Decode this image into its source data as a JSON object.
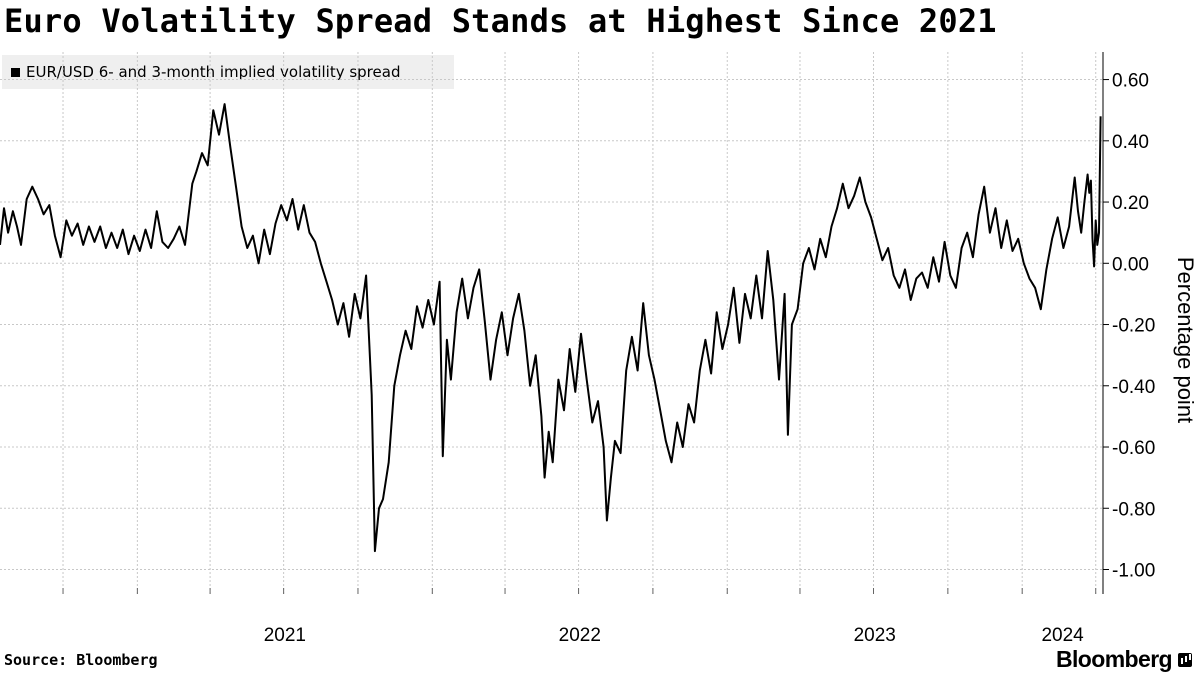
{
  "title": "Euro Volatility Spread Stands at Highest Since 2021",
  "source": "Source: Bloomberg",
  "brand": "Bloomberg",
  "chart_data": {
    "type": "line",
    "ylabel": "Percentage point",
    "ylim": [
      -1.08,
      0.69
    ],
    "y_ticks": [
      -1.0,
      -0.8,
      -0.6,
      -0.4,
      -0.2,
      0.0,
      0.2,
      0.4,
      0.6
    ],
    "y_tick_labels": [
      "-1.00",
      "-0.80",
      "-0.60",
      "-0.40",
      "-0.20",
      "0.00",
      "0.20",
      "0.40",
      "0.60"
    ],
    "x_labels": [
      {
        "label": "2021",
        "date": "2021-01-01"
      },
      {
        "label": "2022",
        "date": "2022-01-01"
      },
      {
        "label": "2023",
        "date": "2023-01-01"
      },
      {
        "label": "2024",
        "date": "2024-01-01"
      }
    ],
    "xlim": [
      "2020-07-15",
      "2024-04-10"
    ],
    "grid": true,
    "legend_position": "top-left",
    "axis_position": "right",
    "line_color": "#000000",
    "series": [
      {
        "name": "EUR/USD 6- and 3-month implied volatility spread",
        "points": [
          [
            "2020-07-15",
            0.06
          ],
          [
            "2020-07-20",
            0.18
          ],
          [
            "2020-07-25",
            0.1
          ],
          [
            "2020-07-31",
            0.17
          ],
          [
            "2020-08-05",
            0.12
          ],
          [
            "2020-08-10",
            0.06
          ],
          [
            "2020-08-17",
            0.21
          ],
          [
            "2020-08-24",
            0.25
          ],
          [
            "2020-08-31",
            0.21
          ],
          [
            "2020-09-07",
            0.16
          ],
          [
            "2020-09-14",
            0.19
          ],
          [
            "2020-09-21",
            0.09
          ],
          [
            "2020-09-28",
            0.02
          ],
          [
            "2020-10-05",
            0.14
          ],
          [
            "2020-10-12",
            0.09
          ],
          [
            "2020-10-19",
            0.13
          ],
          [
            "2020-10-26",
            0.06
          ],
          [
            "2020-11-02",
            0.12
          ],
          [
            "2020-11-09",
            0.07
          ],
          [
            "2020-11-16",
            0.12
          ],
          [
            "2020-11-23",
            0.05
          ],
          [
            "2020-11-30",
            0.1
          ],
          [
            "2020-12-07",
            0.05
          ],
          [
            "2020-12-14",
            0.11
          ],
          [
            "2020-12-21",
            0.03
          ],
          [
            "2020-12-28",
            0.09
          ],
          [
            "2021-01-04",
            0.04
          ],
          [
            "2021-01-11",
            0.11
          ],
          [
            "2021-01-18",
            0.05
          ],
          [
            "2021-01-25",
            0.17
          ],
          [
            "2021-02-01",
            0.07
          ],
          [
            "2021-02-08",
            0.05
          ],
          [
            "2021-02-15",
            0.08
          ],
          [
            "2021-02-22",
            0.12
          ],
          [
            "2021-03-01",
            0.06
          ],
          [
            "2021-03-05",
            0.15
          ],
          [
            "2021-03-10",
            0.26
          ],
          [
            "2021-03-15",
            0.3
          ],
          [
            "2021-03-22",
            0.36
          ],
          [
            "2021-03-29",
            0.32
          ],
          [
            "2021-04-05",
            0.5
          ],
          [
            "2021-04-12",
            0.42
          ],
          [
            "2021-04-19",
            0.52
          ],
          [
            "2021-04-26",
            0.38
          ],
          [
            "2021-05-03",
            0.25
          ],
          [
            "2021-05-10",
            0.12
          ],
          [
            "2021-05-17",
            0.05
          ],
          [
            "2021-05-24",
            0.09
          ],
          [
            "2021-05-31",
            0.0
          ],
          [
            "2021-06-07",
            0.11
          ],
          [
            "2021-06-14",
            0.03
          ],
          [
            "2021-06-21",
            0.13
          ],
          [
            "2021-06-28",
            0.19
          ],
          [
            "2021-07-05",
            0.14
          ],
          [
            "2021-07-12",
            0.21
          ],
          [
            "2021-07-19",
            0.11
          ],
          [
            "2021-07-26",
            0.19
          ],
          [
            "2021-08-02",
            0.1
          ],
          [
            "2021-08-09",
            0.07
          ],
          [
            "2021-08-16",
            0.0
          ],
          [
            "2021-08-23",
            -0.06
          ],
          [
            "2021-08-30",
            -0.12
          ],
          [
            "2021-09-06",
            -0.2
          ],
          [
            "2021-09-13",
            -0.13
          ],
          [
            "2021-09-20",
            -0.24
          ],
          [
            "2021-09-27",
            -0.1
          ],
          [
            "2021-10-04",
            -0.18
          ],
          [
            "2021-10-11",
            -0.04
          ],
          [
            "2021-10-18",
            -0.43
          ],
          [
            "2021-10-22",
            -0.94
          ],
          [
            "2021-10-27",
            -0.8
          ],
          [
            "2021-11-01",
            -0.77
          ],
          [
            "2021-11-08",
            -0.65
          ],
          [
            "2021-11-15",
            -0.4
          ],
          [
            "2021-11-22",
            -0.3
          ],
          [
            "2021-11-29",
            -0.22
          ],
          [
            "2021-12-06",
            -0.28
          ],
          [
            "2021-12-13",
            -0.14
          ],
          [
            "2021-12-20",
            -0.21
          ],
          [
            "2021-12-27",
            -0.12
          ],
          [
            "2022-01-03",
            -0.2
          ],
          [
            "2022-01-10",
            -0.06
          ],
          [
            "2022-01-14",
            -0.63
          ],
          [
            "2022-01-19",
            -0.25
          ],
          [
            "2022-01-24",
            -0.38
          ],
          [
            "2022-01-31",
            -0.16
          ],
          [
            "2022-02-07",
            -0.05
          ],
          [
            "2022-02-14",
            -0.18
          ],
          [
            "2022-02-21",
            -0.08
          ],
          [
            "2022-02-28",
            -0.02
          ],
          [
            "2022-03-07",
            -0.19
          ],
          [
            "2022-03-14",
            -0.38
          ],
          [
            "2022-03-21",
            -0.25
          ],
          [
            "2022-03-28",
            -0.16
          ],
          [
            "2022-04-04",
            -0.3
          ],
          [
            "2022-04-11",
            -0.18
          ],
          [
            "2022-04-18",
            -0.1
          ],
          [
            "2022-04-25",
            -0.22
          ],
          [
            "2022-05-02",
            -0.4
          ],
          [
            "2022-05-09",
            -0.3
          ],
          [
            "2022-05-16",
            -0.5
          ],
          [
            "2022-05-20",
            -0.7
          ],
          [
            "2022-05-25",
            -0.55
          ],
          [
            "2022-05-30",
            -0.65
          ],
          [
            "2022-06-06",
            -0.38
          ],
          [
            "2022-06-13",
            -0.48
          ],
          [
            "2022-06-20",
            -0.28
          ],
          [
            "2022-06-27",
            -0.42
          ],
          [
            "2022-07-04",
            -0.23
          ],
          [
            "2022-07-11",
            -0.38
          ],
          [
            "2022-07-18",
            -0.52
          ],
          [
            "2022-07-25",
            -0.45
          ],
          [
            "2022-08-01",
            -0.6
          ],
          [
            "2022-08-05",
            -0.84
          ],
          [
            "2022-08-10",
            -0.7
          ],
          [
            "2022-08-15",
            -0.58
          ],
          [
            "2022-08-22",
            -0.62
          ],
          [
            "2022-08-29",
            -0.35
          ],
          [
            "2022-09-05",
            -0.24
          ],
          [
            "2022-09-12",
            -0.35
          ],
          [
            "2022-09-19",
            -0.13
          ],
          [
            "2022-09-26",
            -0.3
          ],
          [
            "2022-10-03",
            -0.38
          ],
          [
            "2022-10-10",
            -0.48
          ],
          [
            "2022-10-17",
            -0.58
          ],
          [
            "2022-10-24",
            -0.65
          ],
          [
            "2022-10-31",
            -0.52
          ],
          [
            "2022-11-07",
            -0.6
          ],
          [
            "2022-11-14",
            -0.46
          ],
          [
            "2022-11-21",
            -0.52
          ],
          [
            "2022-11-28",
            -0.35
          ],
          [
            "2022-12-05",
            -0.25
          ],
          [
            "2022-12-12",
            -0.36
          ],
          [
            "2022-12-19",
            -0.16
          ],
          [
            "2022-12-26",
            -0.28
          ],
          [
            "2023-01-02",
            -0.2
          ],
          [
            "2023-01-09",
            -0.08
          ],
          [
            "2023-01-16",
            -0.26
          ],
          [
            "2023-01-23",
            -0.1
          ],
          [
            "2023-01-30",
            -0.18
          ],
          [
            "2023-02-06",
            -0.04
          ],
          [
            "2023-02-13",
            -0.18
          ],
          [
            "2023-02-20",
            0.04
          ],
          [
            "2023-02-27",
            -0.12
          ],
          [
            "2023-03-06",
            -0.38
          ],
          [
            "2023-03-13",
            -0.1
          ],
          [
            "2023-03-17",
            -0.56
          ],
          [
            "2023-03-22",
            -0.2
          ],
          [
            "2023-03-29",
            -0.15
          ],
          [
            "2023-04-05",
            0.0
          ],
          [
            "2023-04-12",
            0.05
          ],
          [
            "2023-04-19",
            -0.02
          ],
          [
            "2023-04-26",
            0.08
          ],
          [
            "2023-05-03",
            0.02
          ],
          [
            "2023-05-10",
            0.12
          ],
          [
            "2023-05-17",
            0.18
          ],
          [
            "2023-05-24",
            0.26
          ],
          [
            "2023-05-31",
            0.18
          ],
          [
            "2023-06-07",
            0.22
          ],
          [
            "2023-06-14",
            0.28
          ],
          [
            "2023-06-21",
            0.2
          ],
          [
            "2023-06-28",
            0.15
          ],
          [
            "2023-07-05",
            0.08
          ],
          [
            "2023-07-12",
            0.01
          ],
          [
            "2023-07-19",
            0.05
          ],
          [
            "2023-07-26",
            -0.04
          ],
          [
            "2023-08-02",
            -0.08
          ],
          [
            "2023-08-09",
            -0.02
          ],
          [
            "2023-08-16",
            -0.12
          ],
          [
            "2023-08-23",
            -0.05
          ],
          [
            "2023-08-30",
            -0.03
          ],
          [
            "2023-09-06",
            -0.08
          ],
          [
            "2023-09-13",
            0.02
          ],
          [
            "2023-09-20",
            -0.06
          ],
          [
            "2023-09-27",
            0.07
          ],
          [
            "2023-10-04",
            -0.04
          ],
          [
            "2023-10-11",
            -0.08
          ],
          [
            "2023-10-18",
            0.05
          ],
          [
            "2023-10-25",
            0.1
          ],
          [
            "2023-11-01",
            0.02
          ],
          [
            "2023-11-08",
            0.16
          ],
          [
            "2023-11-15",
            0.25
          ],
          [
            "2023-11-22",
            0.1
          ],
          [
            "2023-11-29",
            0.18
          ],
          [
            "2023-12-06",
            0.05
          ],
          [
            "2023-12-13",
            0.14
          ],
          [
            "2023-12-20",
            0.04
          ],
          [
            "2023-12-27",
            0.08
          ],
          [
            "2024-01-03",
            0.0
          ],
          [
            "2024-01-10",
            -0.05
          ],
          [
            "2024-01-17",
            -0.08
          ],
          [
            "2024-01-24",
            -0.15
          ],
          [
            "2024-01-31",
            -0.02
          ],
          [
            "2024-02-07",
            0.08
          ],
          [
            "2024-02-14",
            0.15
          ],
          [
            "2024-02-21",
            0.05
          ],
          [
            "2024-02-28",
            0.12
          ],
          [
            "2024-03-06",
            0.28
          ],
          [
            "2024-03-10",
            0.17
          ],
          [
            "2024-03-14",
            0.1
          ],
          [
            "2024-03-18",
            0.2
          ],
          [
            "2024-03-22",
            0.29
          ],
          [
            "2024-03-24",
            0.23
          ],
          [
            "2024-03-26",
            0.27
          ],
          [
            "2024-03-28",
            0.08
          ],
          [
            "2024-03-30",
            -0.01
          ],
          [
            "2024-04-01",
            0.14
          ],
          [
            "2024-04-03",
            0.06
          ],
          [
            "2024-04-05",
            0.1
          ],
          [
            "2024-04-07",
            0.48
          ]
        ]
      }
    ]
  }
}
